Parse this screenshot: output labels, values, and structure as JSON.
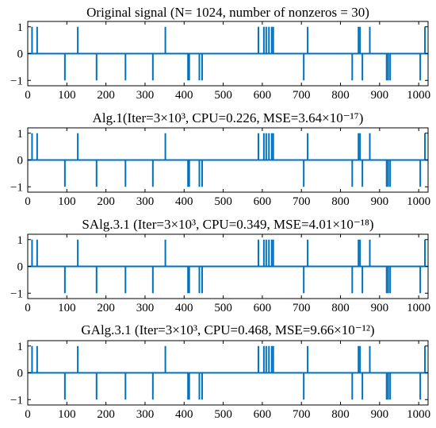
{
  "chart_data": [
    {
      "type": "line",
      "title": "Original signal (N= 1024, number of nonzeros = 30)",
      "xlim": [
        0,
        1024
      ],
      "ylim": [
        -1.2,
        1.2
      ],
      "xticks": [
        "0",
        "100",
        "200",
        "300",
        "400",
        "500",
        "600",
        "700",
        "800",
        "900",
        "1000"
      ],
      "yticks": [
        "1",
        "0",
        "−1"
      ],
      "color": "#0072BD",
      "spikes": [
        [
          11,
          1
        ],
        [
          24,
          1
        ],
        [
          95,
          -1
        ],
        [
          128,
          1
        ],
        [
          176,
          -1
        ],
        [
          250,
          -1
        ],
        [
          320,
          -1
        ],
        [
          352,
          1
        ],
        [
          410,
          -1
        ],
        [
          413,
          -1
        ],
        [
          439,
          -1
        ],
        [
          446,
          -1
        ],
        [
          590,
          1
        ],
        [
          604,
          1
        ],
        [
          610,
          1
        ],
        [
          617,
          1
        ],
        [
          624,
          1
        ],
        [
          628,
          1
        ],
        [
          706,
          -1
        ],
        [
          716,
          1
        ],
        [
          830,
          -1
        ],
        [
          846,
          1
        ],
        [
          850,
          1
        ],
        [
          856,
          -1
        ],
        [
          875,
          1
        ],
        [
          918,
          -1
        ],
        [
          922,
          -1
        ],
        [
          927,
          -1
        ],
        [
          1004,
          -1
        ],
        [
          1016,
          1
        ]
      ]
    },
    {
      "type": "line",
      "title": "Alg.1(Iter=3×10³, CPU=0.226, MSE=3.64×10⁻¹⁷)",
      "xlim": [
        0,
        1024
      ],
      "ylim": [
        -1.2,
        1.2
      ],
      "xticks": [
        "0",
        "100",
        "200",
        "300",
        "400",
        "500",
        "600",
        "700",
        "800",
        "900",
        "1000"
      ],
      "yticks": [
        "1",
        "0",
        "−1"
      ],
      "color": "#0072BD",
      "spikes": [
        [
          11,
          1
        ],
        [
          24,
          1
        ],
        [
          95,
          -1
        ],
        [
          128,
          1
        ],
        [
          176,
          -1
        ],
        [
          250,
          -1
        ],
        [
          320,
          -1
        ],
        [
          352,
          1
        ],
        [
          410,
          -1
        ],
        [
          413,
          -1
        ],
        [
          439,
          -1
        ],
        [
          446,
          -1
        ],
        [
          590,
          1
        ],
        [
          604,
          1
        ],
        [
          610,
          1
        ],
        [
          617,
          1
        ],
        [
          624,
          1
        ],
        [
          628,
          1
        ],
        [
          706,
          -1
        ],
        [
          716,
          1
        ],
        [
          830,
          -1
        ],
        [
          846,
          1
        ],
        [
          850,
          1
        ],
        [
          856,
          -1
        ],
        [
          875,
          1
        ],
        [
          918,
          -1
        ],
        [
          922,
          -1
        ],
        [
          927,
          -1
        ],
        [
          1004,
          -1
        ],
        [
          1016,
          1
        ]
      ]
    },
    {
      "type": "line",
      "title": "SAlg.3.1 (Iter=3×10³, CPU=0.349, MSE=4.01×10⁻¹⁸)",
      "xlim": [
        0,
        1024
      ],
      "ylim": [
        -1.2,
        1.2
      ],
      "xticks": [
        "0",
        "100",
        "200",
        "300",
        "400",
        "500",
        "600",
        "700",
        "800",
        "900",
        "1000"
      ],
      "yticks": [
        "1",
        "0",
        "−1"
      ],
      "color": "#0072BD",
      "spikes": [
        [
          11,
          1
        ],
        [
          24,
          1
        ],
        [
          95,
          -1
        ],
        [
          128,
          1
        ],
        [
          176,
          -1
        ],
        [
          250,
          -1
        ],
        [
          320,
          -1
        ],
        [
          352,
          1
        ],
        [
          410,
          -1
        ],
        [
          413,
          -1
        ],
        [
          439,
          -1
        ],
        [
          446,
          -1
        ],
        [
          590,
          1
        ],
        [
          604,
          1
        ],
        [
          610,
          1
        ],
        [
          617,
          1
        ],
        [
          624,
          1
        ],
        [
          628,
          1
        ],
        [
          706,
          -1
        ],
        [
          716,
          1
        ],
        [
          830,
          -1
        ],
        [
          846,
          1
        ],
        [
          850,
          1
        ],
        [
          856,
          -1
        ],
        [
          875,
          1
        ],
        [
          918,
          -1
        ],
        [
          922,
          -1
        ],
        [
          927,
          -1
        ],
        [
          1004,
          -1
        ],
        [
          1016,
          1
        ]
      ]
    },
    {
      "type": "line",
      "title": "GAlg.3.1 (Iter=3×10³, CPU=0.468, MSE=9.66×10⁻¹²)",
      "xlim": [
        0,
        1024
      ],
      "ylim": [
        -1.2,
        1.2
      ],
      "xticks": [
        "0",
        "100",
        "200",
        "300",
        "400",
        "500",
        "600",
        "700",
        "800",
        "900",
        "1000"
      ],
      "yticks": [
        "1",
        "0",
        "−1"
      ],
      "color": "#0072BD",
      "spikes": [
        [
          11,
          1
        ],
        [
          24,
          1
        ],
        [
          95,
          -1
        ],
        [
          128,
          1
        ],
        [
          176,
          -1
        ],
        [
          250,
          -1
        ],
        [
          320,
          -1
        ],
        [
          352,
          1
        ],
        [
          410,
          -1
        ],
        [
          413,
          -1
        ],
        [
          439,
          -1
        ],
        [
          446,
          -1
        ],
        [
          590,
          1
        ],
        [
          604,
          1
        ],
        [
          610,
          1
        ],
        [
          617,
          1
        ],
        [
          624,
          1
        ],
        [
          628,
          1
        ],
        [
          706,
          -1
        ],
        [
          716,
          1
        ],
        [
          830,
          -1
        ],
        [
          846,
          1
        ],
        [
          850,
          1
        ],
        [
          856,
          -1
        ],
        [
          875,
          1
        ],
        [
          918,
          -1
        ],
        [
          922,
          -1
        ],
        [
          927,
          -1
        ],
        [
          1004,
          -1
        ],
        [
          1016,
          1
        ]
      ]
    }
  ]
}
